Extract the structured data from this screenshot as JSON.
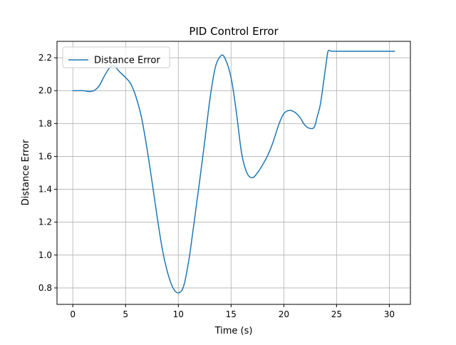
{
  "chart_data": {
    "type": "line",
    "title": "PID Control Error",
    "xlabel": "Time (s)",
    "ylabel": "Distance Error",
    "xlim": [
      -1.5,
      32.0
    ],
    "ylim": [
      0.7,
      2.3
    ],
    "x_ticks": [
      0,
      5,
      10,
      15,
      20,
      25,
      30
    ],
    "y_ticks": [
      0.8,
      1.0,
      1.2,
      1.4,
      1.6,
      1.8,
      2.0,
      2.2
    ],
    "x_tick_labels": [
      "0",
      "5",
      "10",
      "15",
      "20",
      "25",
      "30"
    ],
    "y_tick_labels": [
      "0.8",
      "1.0",
      "1.2",
      "1.4",
      "1.6",
      "1.8",
      "2.0",
      "2.2"
    ],
    "grid": true,
    "legend_position": "upper left",
    "series": [
      {
        "name": "Distance Error",
        "color": "#1f77b4",
        "x": [
          0,
          0.5,
          1.0,
          1.5,
          2.0,
          2.5,
          3.0,
          3.5,
          3.9,
          4.5,
          5.0,
          5.5,
          6.0,
          6.5,
          7.0,
          7.5,
          8.0,
          8.5,
          9.0,
          9.5,
          10.0,
          10.5,
          11.0,
          11.5,
          12.0,
          12.5,
          13.0,
          13.5,
          14.0,
          14.4,
          15.0,
          15.5,
          16.0,
          16.5,
          17.0,
          17.5,
          18.0,
          18.5,
          19.0,
          19.5,
          20.0,
          20.5,
          21.0,
          21.5,
          22.0,
          22.5,
          22.9,
          23.2,
          23.5,
          24.0,
          24.2,
          24.5,
          25.0,
          26.0,
          27.0,
          28.0,
          29.0,
          30.0,
          30.5
        ],
        "y": [
          2.0,
          2.0,
          2.0,
          1.995,
          2.0,
          2.03,
          2.09,
          2.14,
          2.15,
          2.11,
          2.08,
          2.04,
          1.96,
          1.84,
          1.66,
          1.45,
          1.23,
          1.03,
          0.89,
          0.8,
          0.77,
          0.81,
          0.97,
          1.2,
          1.44,
          1.69,
          1.95,
          2.14,
          2.21,
          2.2,
          2.08,
          1.87,
          1.62,
          1.5,
          1.47,
          1.5,
          1.55,
          1.61,
          1.69,
          1.79,
          1.86,
          1.88,
          1.87,
          1.84,
          1.79,
          1.77,
          1.78,
          1.85,
          1.93,
          2.16,
          2.24,
          2.24,
          2.24,
          2.24,
          2.24,
          2.24,
          2.24,
          2.24,
          2.24
        ]
      }
    ]
  }
}
